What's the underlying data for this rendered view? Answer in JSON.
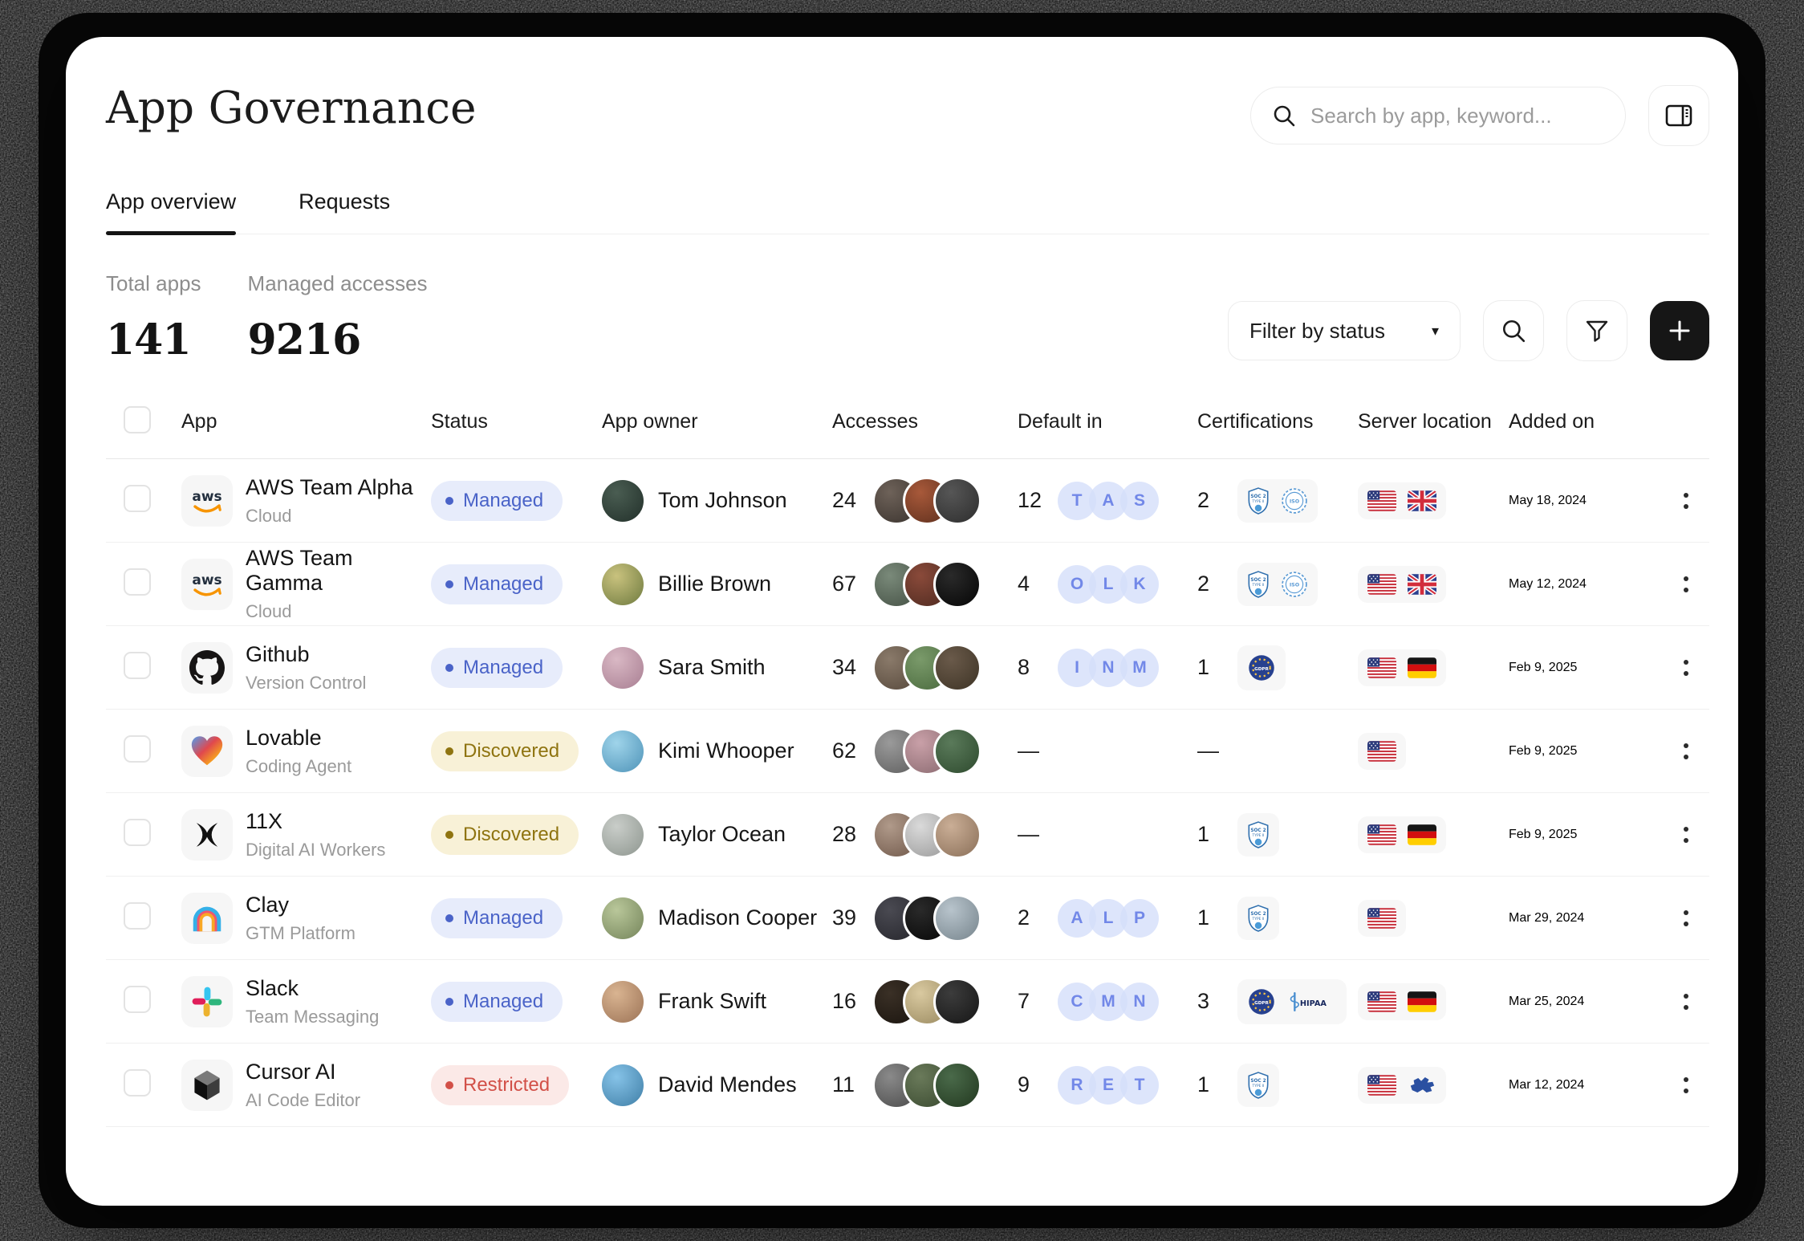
{
  "header": {
    "title": "App Governance",
    "search": {
      "placeholder": "Search by app, keyword..."
    }
  },
  "tabs": [
    {
      "label": "App overview",
      "active": true
    },
    {
      "label": "Requests",
      "active": false
    }
  ],
  "stats": [
    {
      "label": "Total apps",
      "value": "141"
    },
    {
      "label": "Managed accesses",
      "value": "9216"
    }
  ],
  "toolbar": {
    "filter_dropdown": {
      "label": "Filter by status"
    }
  },
  "status_colors": {
    "managed": {
      "bg": "#e7ecfb",
      "text": "#4a63c8"
    },
    "discovered": {
      "bg": "#f8f1d7",
      "text": "#8f7410"
    },
    "restricted": {
      "bg": "#fbe9e7",
      "text": "#d25048"
    }
  },
  "table": {
    "columns": [
      "App",
      "Status",
      "App owner",
      "Accesses",
      "Default in",
      "Certifications",
      "Server location",
      "Added on"
    ],
    "empty_value": "—",
    "rows": [
      {
        "name": "AWS Team Alpha",
        "category": "Cloud",
        "icon": "aws",
        "status": "Managed",
        "status_key": "managed",
        "owner": "Tom Johnson",
        "accesses": "24",
        "default_in": "12",
        "default_chips": [
          "T",
          "A",
          "S"
        ],
        "cert_count": "2",
        "cert_icons": [
          "soc2",
          "iso"
        ],
        "locations": [
          "us",
          "uk"
        ],
        "added_on": "May 18, 2024"
      },
      {
        "name": "AWS Team Gamma",
        "category": "Cloud",
        "icon": "aws",
        "status": "Managed",
        "status_key": "managed",
        "owner": "Billie Brown",
        "accesses": "67",
        "default_in": "4",
        "default_chips": [
          "O",
          "L",
          "K"
        ],
        "cert_count": "2",
        "cert_icons": [
          "soc2",
          "iso"
        ],
        "locations": [
          "us",
          "uk"
        ],
        "added_on": "May 12, 2024"
      },
      {
        "name": "Github",
        "category": "Version Control",
        "icon": "github",
        "status": "Managed",
        "status_key": "managed",
        "owner": "Sara Smith",
        "accesses": "34",
        "default_in": "8",
        "default_chips": [
          "I",
          "N",
          "M"
        ],
        "cert_count": "1",
        "cert_icons": [
          "gdpr"
        ],
        "locations": [
          "us",
          "de"
        ],
        "added_on": "Feb 9, 2025"
      },
      {
        "name": "Lovable",
        "category": "Coding Agent",
        "icon": "lovable",
        "status": "Discovered",
        "status_key": "discovered",
        "owner": "Kimi Whooper",
        "accesses": "62",
        "default_in": "—",
        "default_chips": [],
        "cert_count": "—",
        "cert_icons": [],
        "locations": [
          "us"
        ],
        "added_on": "Feb 9, 2025"
      },
      {
        "name": "11X",
        "category": "Digital AI Workers",
        "icon": "x11",
        "status": "Discovered",
        "status_key": "discovered",
        "owner": "Taylor Ocean",
        "accesses": "28",
        "default_in": "—",
        "default_chips": [],
        "cert_count": "1",
        "cert_icons": [
          "soc2"
        ],
        "locations": [
          "us",
          "de"
        ],
        "added_on": "Feb 9, 2025"
      },
      {
        "name": "Clay",
        "category": "GTM Platform",
        "icon": "clay",
        "status": "Managed",
        "status_key": "managed",
        "owner": "Madison Cooper",
        "accesses": "39",
        "default_in": "2",
        "default_chips": [
          "A",
          "L",
          "P"
        ],
        "cert_count": "1",
        "cert_icons": [
          "soc2"
        ],
        "locations": [
          "us"
        ],
        "added_on": "Mar 29, 2024"
      },
      {
        "name": "Slack",
        "category": "Team Messaging",
        "icon": "slack",
        "status": "Managed",
        "status_key": "managed",
        "owner": "Frank Swift",
        "accesses": "16",
        "default_in": "7",
        "default_chips": [
          "C",
          "M",
          "N"
        ],
        "cert_count": "3",
        "cert_icons": [
          "gdpr",
          "hipaa"
        ],
        "locations": [
          "us",
          "de"
        ],
        "added_on": "Mar 25, 2024"
      },
      {
        "name": "Cursor AI",
        "category": "AI Code Editor",
        "icon": "cursor",
        "status": "Restricted",
        "status_key": "restricted",
        "owner": "David Mendes",
        "accesses": "11",
        "default_in": "9",
        "default_chips": [
          "R",
          "E",
          "T"
        ],
        "cert_count": "1",
        "cert_icons": [
          "soc2"
        ],
        "locations": [
          "us",
          "eu"
        ],
        "added_on": "Mar 12, 2024"
      }
    ]
  }
}
